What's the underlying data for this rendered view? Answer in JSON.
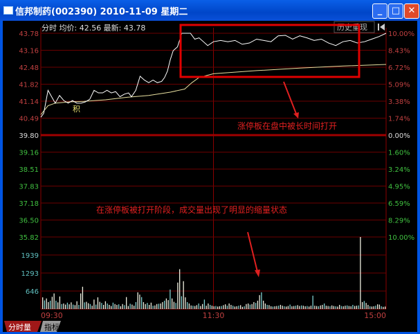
{
  "window": {
    "title": "信邦制药(002390)  2010-11-09  星期二",
    "minimize": "_",
    "maximize": "□",
    "close": "✕"
  },
  "header": {
    "info": "分时 均价: 42.56 最新: 43.78",
    "history_button": "历史重现",
    "back_icon": "arrow-left-bar-icon"
  },
  "colors": {
    "up": "#c04040",
    "down": "#40c040",
    "volume_axis": "#60c0c0",
    "grid": "#8b0000",
    "annotation": "#e02020"
  },
  "annotations": {
    "box_note": "涨停板在盘中被长时间打开",
    "volume_note": "在涨停板被打开阶段，成交量出现了明显的缩量状态",
    "marker": "积"
  },
  "tabs": [
    {
      "label": "分时量",
      "active": true
    },
    {
      "label": "指标",
      "active": false
    }
  ],
  "chart_data": {
    "type": "line",
    "price_axis_left": [
      "43.78",
      "43.16",
      "42.48",
      "41.82",
      "41.14",
      "40.49",
      "39.80",
      "39.16",
      "38.51",
      "37.83",
      "37.18",
      "36.50",
      "35.82"
    ],
    "pct_axis_right": [
      "10.00%",
      "8.43%",
      "6.72%",
      "5.09%",
      "3.38%",
      "1.74%",
      "0.00%",
      "1.60%",
      "3.24%",
      "4.95%",
      "6.59%",
      "8.29%",
      "10.00%"
    ],
    "volume_axis": [
      "1939",
      "1293",
      "646"
    ],
    "x_ticks": [
      "09:30",
      "11:30",
      "15:00"
    ],
    "ylim": [
      35.82,
      43.78
    ],
    "prev_close": 39.8,
    "price_minutes": [
      0,
      2,
      5,
      7,
      10,
      13,
      16,
      19,
      22,
      25,
      28,
      31,
      34,
      37,
      40,
      43,
      46,
      49,
      52,
      55,
      58,
      61,
      63,
      66,
      69,
      72,
      75,
      78,
      81,
      84,
      86,
      88,
      90,
      92,
      95,
      98,
      101,
      104,
      107,
      110,
      113,
      116,
      120,
      125,
      130,
      135,
      140,
      145,
      150,
      155,
      160,
      165,
      170,
      175,
      180,
      185,
      190,
      195,
      200,
      205,
      210,
      215,
      220,
      225,
      230,
      235,
      240
    ],
    "price": [
      40.5,
      40.65,
      41.55,
      41.35,
      41.05,
      41.35,
      41.15,
      41.05,
      41.15,
      41.05,
      41.05,
      41.1,
      41.2,
      41.55,
      41.45,
      41.45,
      41.55,
      41.45,
      41.5,
      41.3,
      41.4,
      41.45,
      41.3,
      41.55,
      42.1,
      41.95,
      41.85,
      41.95,
      41.85,
      41.9,
      42.05,
      42.3,
      42.75,
      43.1,
      43.25,
      43.78,
      43.78,
      43.78,
      43.55,
      43.6,
      43.45,
      43.3,
      43.45,
      43.5,
      43.45,
      43.5,
      43.35,
      43.4,
      43.55,
      43.5,
      43.45,
      43.68,
      43.7,
      43.55,
      43.68,
      43.6,
      43.5,
      43.55,
      43.4,
      43.3,
      43.45,
      43.5,
      43.4,
      43.45,
      43.55,
      43.65,
      43.78
    ],
    "avg_minutes": [
      0,
      5,
      10,
      20,
      30,
      45,
      60,
      75,
      90,
      100,
      105,
      110,
      120,
      150,
      180,
      210,
      240
    ],
    "avg": [
      40.6,
      40.95,
      41.05,
      41.1,
      41.12,
      41.18,
      41.28,
      41.35,
      41.48,
      41.6,
      41.85,
      42.05,
      42.2,
      42.32,
      42.42,
      42.5,
      42.56
    ],
    "volume_max": 2585,
    "volume": [
      420,
      310,
      380,
      250,
      300,
      440,
      560,
      300,
      240,
      450,
      180,
      200,
      160,
      230,
      170,
      240,
      160,
      140,
      280,
      150,
      560,
      800,
      240,
      260,
      210,
      180,
      120,
      340,
      160,
      420,
      260,
      220,
      150,
      280,
      200,
      150,
      110,
      230,
      180,
      150,
      170,
      100,
      180,
      140,
      430,
      110,
      190,
      160,
      120,
      250,
      600,
      520,
      430,
      250,
      180,
      220,
      150,
      230,
      120,
      130,
      180,
      190,
      200,
      250,
      300,
      380,
      320,
      700,
      380,
      260,
      220,
      950,
      1430,
      460,
      1000,
      420,
      250,
      200,
      130,
      120,
      110,
      140,
      200,
      110,
      180,
      340,
      120,
      200,
      150,
      120,
      100,
      110,
      90,
      100,
      110,
      140,
      170,
      120,
      200,
      150,
      120,
      90,
      100,
      120,
      140,
      80,
      100,
      180,
      200,
      160,
      180,
      250,
      220,
      300,
      500,
      600,
      300,
      200,
      150,
      140,
      100,
      90,
      100,
      110,
      120,
      150,
      120,
      100,
      90,
      110,
      160,
      100,
      110,
      120,
      140,
      110,
      130,
      120,
      100,
      110,
      90,
      120,
      480,
      120,
      110,
      100,
      130,
      150,
      200,
      120,
      110,
      100,
      130,
      110,
      100,
      90,
      150,
      110,
      100,
      120,
      130,
      110,
      100,
      150,
      110,
      120,
      130,
      2600,
      250,
      290,
      220,
      150,
      100,
      90,
      100,
      120,
      170,
      160,
      100,
      80,
      90
    ]
  }
}
